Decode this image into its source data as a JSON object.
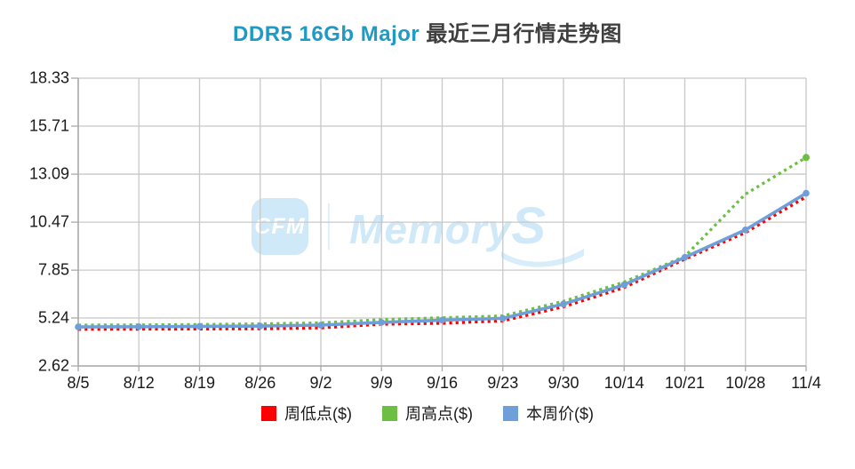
{
  "title": {
    "accent": "DDR5 16Gb Major",
    "rest": " 最近三月行情走势图"
  },
  "colors": {
    "title_accent": "#1e9ac4",
    "title_rest": "#3f3f3f",
    "grid": "#c8c8c8",
    "axis": "#a9a9a9",
    "watermark": "#cfe9f8",
    "series_low": "#ff0000",
    "series_high": "#6cbf42",
    "series_current": "#6f9fd8"
  },
  "watermark": {
    "box_label": "CFM",
    "brand": "Memory",
    "brand_suffix": "S"
  },
  "chart_data": {
    "type": "line",
    "title": "DDR5 16Gb Major 最近三月行情走势图",
    "categories": [
      "8/5",
      "8/12",
      "8/19",
      "8/26",
      "9/2",
      "9/9",
      "9/16",
      "9/23",
      "9/30",
      "10/14",
      "10/21",
      "10/28",
      "11/4"
    ],
    "y_tick_labels": [
      "18.33",
      "15.71",
      "13.09",
      "10.47",
      "7.85",
      "5.24",
      "2.62"
    ],
    "ylim": [
      2.62,
      18.33
    ],
    "grid": true,
    "legend_position": "bottom",
    "series": [
      {
        "name": "周低点($)",
        "color": "#ff0000",
        "style": "dotted",
        "markers": "none",
        "values": [
          4.62,
          4.63,
          4.64,
          4.65,
          4.7,
          4.9,
          4.95,
          5.08,
          5.85,
          6.9,
          8.45,
          9.9,
          11.85
        ]
      },
      {
        "name": "周高点($)",
        "color": "#6cbf42",
        "style": "dotted",
        "markers": "last",
        "values": [
          4.85,
          4.86,
          4.88,
          4.92,
          4.97,
          5.15,
          5.25,
          5.35,
          6.15,
          7.2,
          8.6,
          12.0,
          14.0
        ]
      },
      {
        "name": "本周价($)",
        "color": "#6f9fd8",
        "style": "solid",
        "markers": "all",
        "values": [
          4.75,
          4.76,
          4.78,
          4.8,
          4.85,
          5.0,
          5.12,
          5.22,
          6.0,
          7.05,
          8.55,
          10.05,
          12.05
        ]
      }
    ]
  }
}
